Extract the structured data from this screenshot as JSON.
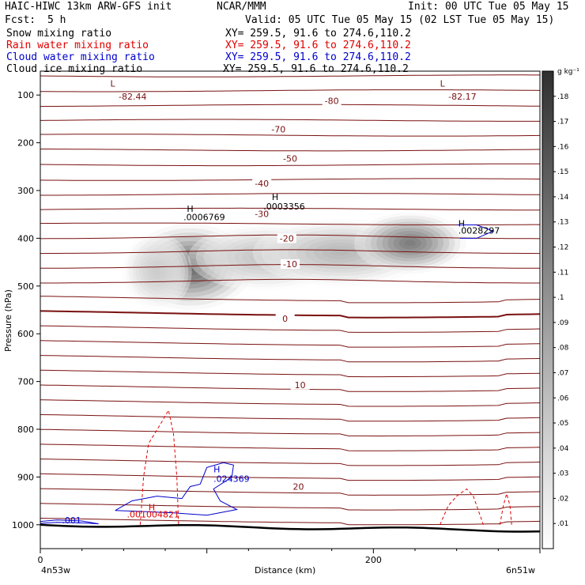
{
  "header": {
    "model": "HAIC-HIWC 13km ARW-GFS init",
    "org": "NCAR/MMM",
    "init": "Init: 00 UTC Tue 05 May 15",
    "fcst_label": "Fcst:",
    "fcst_value": "5 h",
    "valid": "Valid: 05 UTC Tue 05 May 15 (02 LST Tue 05 May 15)",
    "fields": [
      {
        "name": "Snow mixing ratio",
        "xy": "XY= 259.5, 91.6 to 274.6,110.2",
        "color": "#000000"
      },
      {
        "name": "Rain water mixing ratio",
        "xy": "XY= 259.5, 91.6 to 274.6,110.2",
        "color": "#e00000"
      },
      {
        "name": "Cloud water mixing ratio",
        "xy": "XY= 259.5, 91.6 to 274.6,110.2",
        "color": "#0000cc"
      },
      {
        "name": "Cloud ice mixing ratio",
        "xy": "XY= 259.5, 91.6 to 274.6,110.2",
        "color": "#000000"
      }
    ]
  },
  "chart_data": {
    "type": "cross-section contour",
    "xlabel": "Distance (km)",
    "ylabel": "Pressure (hPa)",
    "x_ticks": [
      0,
      200
    ],
    "xlim": [
      0,
      300
    ],
    "y_ticks": [
      100,
      200,
      300,
      400,
      500,
      600,
      700,
      800,
      900,
      1000
    ],
    "ylim": [
      1050,
      50
    ],
    "x_left_label": "4n53w",
    "x_right_label": "6n51w",
    "colorbar": {
      "unit": "g kg⁻¹",
      "ticks": [
        ".01",
        ".02",
        ".03",
        ".04",
        ".05",
        ".06",
        ".07",
        ".08",
        ".09",
        ".1",
        ".11",
        ".12",
        ".13",
        ".14",
        ".15",
        ".16",
        ".17",
        ".18"
      ],
      "range": [
        0,
        0.19
      ]
    },
    "temperature_contours": [
      {
        "label": "-80",
        "label_x": 175,
        "label_p": 112
      },
      {
        "label": "-70",
        "label_x": 143,
        "label_p": 172
      },
      {
        "label": "-50",
        "label_x": 150,
        "label_p": 233
      },
      {
        "label": "-40",
        "label_x": 133,
        "label_p": 285
      },
      {
        "label": "-30",
        "label_x": 133,
        "label_p": 349
      },
      {
        "label": "-20",
        "label_x": 148,
        "label_p": 400
      },
      {
        "label": "-10",
        "label_x": 150,
        "label_p": 454
      },
      {
        "label": "0",
        "label_x": 147,
        "label_p": 568
      },
      {
        "label": "10",
        "label_x": 156,
        "label_p": 707
      },
      {
        "label": "20",
        "label_x": 155,
        "label_p": 920
      }
    ],
    "temperature_labels": [
      {
        "text": "L",
        "x": 42,
        "p": 82
      },
      {
        "text": "-82.44",
        "x": 47,
        "p": 110
      },
      {
        "text": "L",
        "x": 240,
        "p": 82
      },
      {
        "text": "-82.17",
        "x": 245,
        "p": 110
      }
    ],
    "max_labels": [
      {
        "text": "H",
        "x": 88,
        "p": 345,
        "color": "#000000"
      },
      {
        "text": ".0006769",
        "x": 86,
        "p": 362,
        "color": "#000000"
      },
      {
        "text": "H",
        "x": 139,
        "p": 320,
        "color": "#000000"
      },
      {
        "text": ".0003356",
        "x": 134,
        "p": 340,
        "color": "#000000"
      },
      {
        "text": "H",
        "x": 251,
        "p": 375,
        "color": "#000000"
      },
      {
        "text": ".0028297",
        "x": 251,
        "p": 390,
        "color": "#000000"
      },
      {
        "text": "H",
        "x": 104,
        "p": 890,
        "color": "#0000cc"
      },
      {
        "text": ".024369",
        "x": 104,
        "p": 910,
        "color": "#0000cc"
      },
      {
        "text": "H",
        "x": 65,
        "p": 970,
        "color": "#e00000"
      },
      {
        "text": ".001004821",
        "x": 52,
        "p": 985,
        "color": "#e00000"
      },
      {
        "text": ".001",
        "x": 13,
        "p": 997,
        "color": "#0000cc"
      }
    ],
    "snow_blobs": [
      {
        "x": 90,
        "p": 460,
        "sx": 18,
        "sp": 45,
        "v": 0.15
      },
      {
        "x": 135,
        "p": 440,
        "sx": 22,
        "sp": 35,
        "v": 0.06
      },
      {
        "x": 180,
        "p": 430,
        "sx": 25,
        "sp": 35,
        "v": 0.07
      },
      {
        "x": 222,
        "p": 410,
        "sx": 16,
        "sp": 32,
        "v": 0.13
      },
      {
        "x": 70,
        "p": 470,
        "sx": 10,
        "sp": 40,
        "v": 0.05
      }
    ]
  }
}
